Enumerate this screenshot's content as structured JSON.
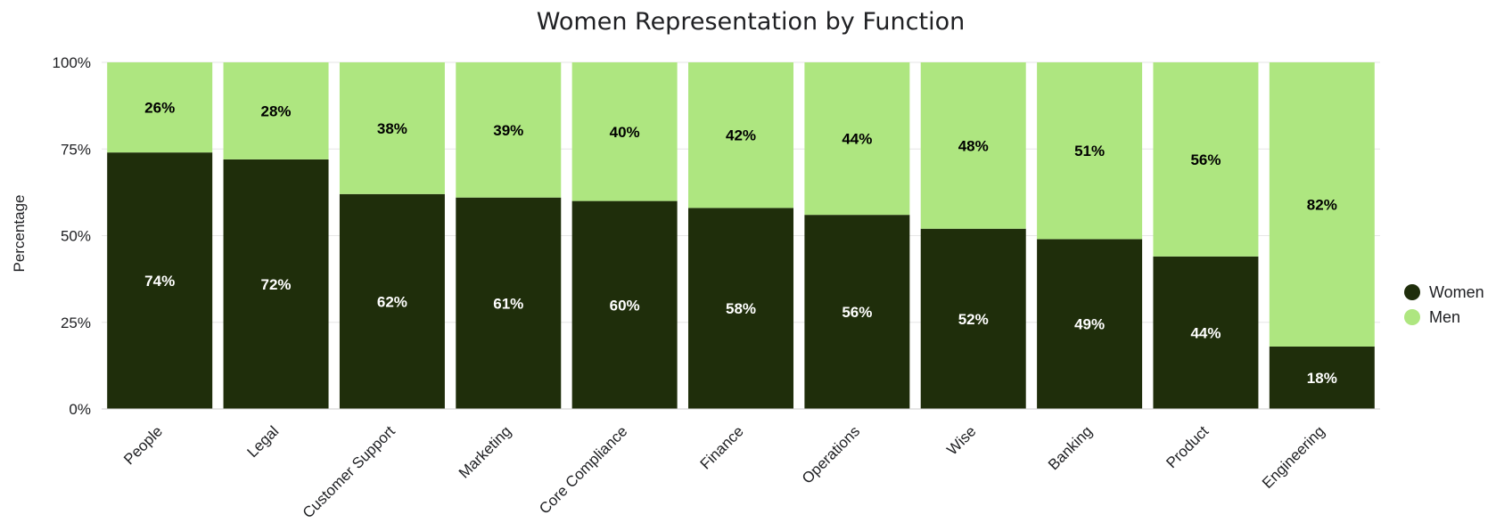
{
  "chart_data": {
    "type": "bar",
    "stacked": true,
    "title": "Women Representation by Function",
    "xlabel": "",
    "ylabel": "Percentage",
    "ylim": [
      0,
      100
    ],
    "yticks": [
      "0%",
      "25%",
      "50%",
      "75%",
      "100%"
    ],
    "grid": true,
    "legend_position": "right",
    "categories": [
      "People",
      "Legal",
      "Customer Support",
      "Marketing",
      "Core Compliance",
      "Finance",
      "Operations",
      "Wise",
      "Banking",
      "Product",
      "Engineering"
    ],
    "series": [
      {
        "name": "Women",
        "color": "#1f2e0b",
        "label_color": "#ffffff",
        "values": [
          74,
          72,
          62,
          61,
          60,
          58,
          56,
          52,
          49,
          44,
          18
        ]
      },
      {
        "name": "Men",
        "color": "#aee680",
        "label_color": "#000000",
        "values": [
          26,
          28,
          38,
          39,
          40,
          42,
          44,
          48,
          51,
          56,
          82
        ]
      }
    ],
    "data_labels": {
      "Women": [
        "74%",
        "72%",
        "62%",
        "61%",
        "60%",
        "58%",
        "56%",
        "52%",
        "49%",
        "44%",
        "18%"
      ],
      "Men": [
        "26%",
        "28%",
        "38%",
        "39%",
        "40%",
        "42%",
        "44%",
        "48%",
        "51%",
        "56%",
        "82%"
      ]
    }
  }
}
